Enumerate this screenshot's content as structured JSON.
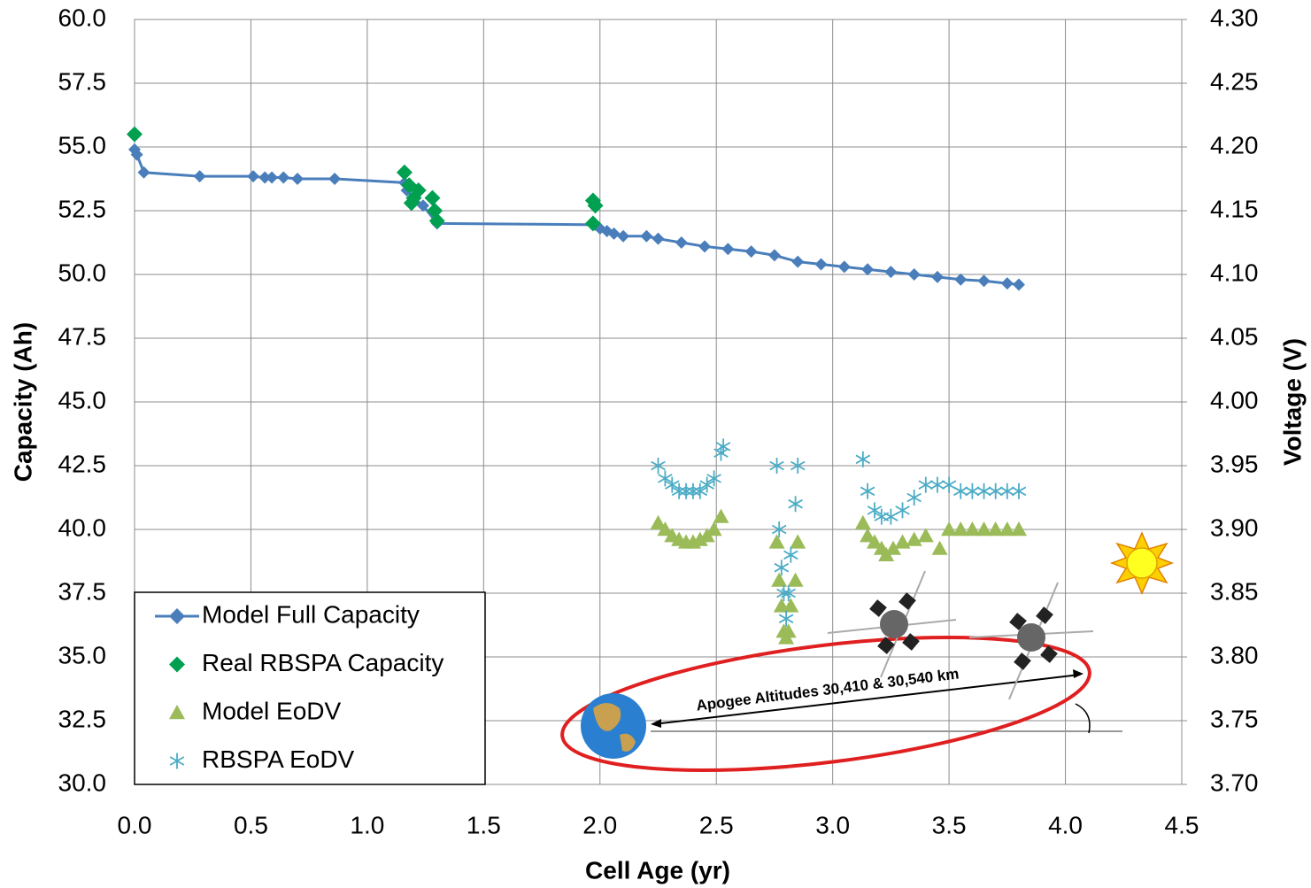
{
  "chart_data": {
    "type": "scatter",
    "xlabel": "Cell Age (yr)",
    "ylabel": "Capacity (Ah)",
    "y2label": "Voltage (V)",
    "xlim": [
      0,
      4.5
    ],
    "ylim": [
      30,
      60
    ],
    "y2lim": [
      3.7,
      4.3
    ],
    "xticks": [
      {
        "value": 0,
        "label": "0.0"
      },
      {
        "value": 0.5,
        "label": "0.5"
      },
      {
        "value": 1,
        "label": "1.0"
      },
      {
        "value": 1.5,
        "label": "1.5"
      },
      {
        "value": 2,
        "label": "2.0"
      },
      {
        "value": 2.5,
        "label": "2.5"
      },
      {
        "value": 3,
        "label": "3.0"
      },
      {
        "value": 3.5,
        "label": "3.5"
      },
      {
        "value": 4,
        "label": "4.0"
      },
      {
        "value": 4.5,
        "label": "4.5"
      }
    ],
    "yticks": [
      {
        "value": 30,
        "label": "30.0"
      },
      {
        "value": 32.5,
        "label": "32.5"
      },
      {
        "value": 35,
        "label": "35.0"
      },
      {
        "value": 37.5,
        "label": "37.5"
      },
      {
        "value": 40,
        "label": "40.0"
      },
      {
        "value": 42.5,
        "label": "42.5"
      },
      {
        "value": 45,
        "label": "45.0"
      },
      {
        "value": 47.5,
        "label": "47.5"
      },
      {
        "value": 50,
        "label": "50.0"
      },
      {
        "value": 52.5,
        "label": "52.5"
      },
      {
        "value": 55,
        "label": "55.0"
      },
      {
        "value": 57.5,
        "label": "57.5"
      },
      {
        "value": 60,
        "label": "60.0"
      }
    ],
    "y2ticks": [
      {
        "value": 3.7,
        "label": "3.70"
      },
      {
        "value": 3.75,
        "label": "3.75"
      },
      {
        "value": 3.8,
        "label": "3.80"
      },
      {
        "value": 3.85,
        "label": "3.85"
      },
      {
        "value": 3.9,
        "label": "3.90"
      },
      {
        "value": 3.95,
        "label": "3.95"
      },
      {
        "value": 4,
        "label": "4.00"
      },
      {
        "value": 4.05,
        "label": "4.05"
      },
      {
        "value": 4.1,
        "label": "4.10"
      },
      {
        "value": 4.15,
        "label": "4.15"
      },
      {
        "value": 4.2,
        "label": "4.20"
      },
      {
        "value": 4.25,
        "label": "4.25"
      },
      {
        "value": 4.3,
        "label": "4.30"
      }
    ],
    "grid": true,
    "legend": "lower left",
    "annotations": [
      "Apogee Altitudes 30,410 & 30,540 km"
    ],
    "series": [
      {
        "name": "Model Full Capacity",
        "color": "#4a7ebb",
        "marker": "diamond",
        "mode": "line",
        "axis": "y",
        "x": [
          0,
          0.01,
          0.04,
          0.28,
          0.51,
          0.56,
          0.59,
          0.64,
          0.7,
          0.86,
          1.16,
          1.17,
          1.2,
          1.24,
          1.3,
          1.98,
          2.0,
          2.03,
          2.06,
          2.1,
          2.2,
          2.25,
          2.35,
          2.45,
          2.55,
          2.65,
          2.75,
          2.85,
          2.95,
          3.05,
          3.15,
          3.25,
          3.35,
          3.45,
          3.55,
          3.65,
          3.75,
          3.8
        ],
        "values": [
          54.9,
          54.7,
          54.0,
          53.85,
          53.85,
          53.8,
          53.8,
          53.8,
          53.75,
          53.75,
          53.6,
          53.3,
          53.0,
          52.7,
          52.0,
          51.95,
          51.8,
          51.7,
          51.6,
          51.5,
          51.5,
          51.4,
          51.25,
          51.1,
          51.0,
          50.9,
          50.75,
          50.5,
          50.4,
          50.3,
          50.2,
          50.1,
          50.0,
          49.9,
          49.8,
          49.75,
          49.65,
          49.6
        ]
      },
      {
        "name": "Real RBSPA Capacity",
        "color": "#00a050",
        "marker": "diamond",
        "mode": "markers",
        "axis": "y",
        "x": [
          0,
          1.16,
          1.18,
          1.2,
          1.22,
          1.19,
          1.28,
          1.29,
          1.3,
          1.97,
          1.98,
          1.97
        ],
        "values": [
          55.5,
          54.0,
          53.5,
          53.0,
          53.3,
          52.8,
          53.0,
          52.5,
          52.1,
          52.9,
          52.7,
          52.0
        ]
      },
      {
        "name": "Model EoDV",
        "color": "#9bbb59",
        "marker": "triangle",
        "mode": "markers",
        "axis": "y2",
        "x": [
          2.25,
          2.28,
          2.31,
          2.34,
          2.37,
          2.4,
          2.43,
          2.46,
          2.49,
          2.52,
          2.76,
          2.77,
          2.78,
          2.79,
          2.8,
          2.81,
          2.82,
          2.84,
          2.85,
          3.13,
          3.15,
          3.18,
          3.21,
          3.23,
          3.26,
          3.3,
          3.35,
          3.4,
          3.46,
          3.5,
          3.55,
          3.6,
          3.65,
          3.7,
          3.75,
          3.8
        ],
        "values": [
          3.905,
          3.9,
          3.895,
          3.892,
          3.89,
          3.89,
          3.892,
          3.895,
          3.9,
          3.91,
          3.89,
          3.86,
          3.84,
          3.82,
          3.815,
          3.82,
          3.84,
          3.86,
          3.89,
          3.905,
          3.895,
          3.89,
          3.885,
          3.88,
          3.885,
          3.89,
          3.892,
          3.895,
          3.885,
          3.9,
          3.9,
          3.9,
          3.9,
          3.9,
          3.9,
          3.9
        ]
      },
      {
        "name": "RBSPA EoDV",
        "color": "#4bacc6",
        "marker": "asterisk",
        "mode": "markers",
        "axis": "y2",
        "x": [
          2.25,
          2.28,
          2.31,
          2.34,
          2.37,
          2.4,
          2.43,
          2.46,
          2.49,
          2.52,
          2.53,
          2.76,
          2.77,
          2.78,
          2.79,
          2.8,
          2.81,
          2.82,
          2.84,
          2.85,
          3.13,
          3.15,
          3.18,
          3.21,
          3.25,
          3.3,
          3.35,
          3.4,
          3.45,
          3.5,
          3.55,
          3.6,
          3.65,
          3.7,
          3.75,
          3.8
        ],
        "values": [
          3.95,
          3.94,
          3.935,
          3.93,
          3.93,
          3.93,
          3.93,
          3.935,
          3.94,
          3.96,
          3.965,
          3.95,
          3.9,
          3.87,
          3.85,
          3.83,
          3.85,
          3.88,
          3.92,
          3.95,
          3.955,
          3.93,
          3.915,
          3.91,
          3.91,
          3.915,
          3.925,
          3.935,
          3.935,
          3.935,
          3.93,
          3.93,
          3.93,
          3.93,
          3.93,
          3.93
        ]
      }
    ]
  }
}
